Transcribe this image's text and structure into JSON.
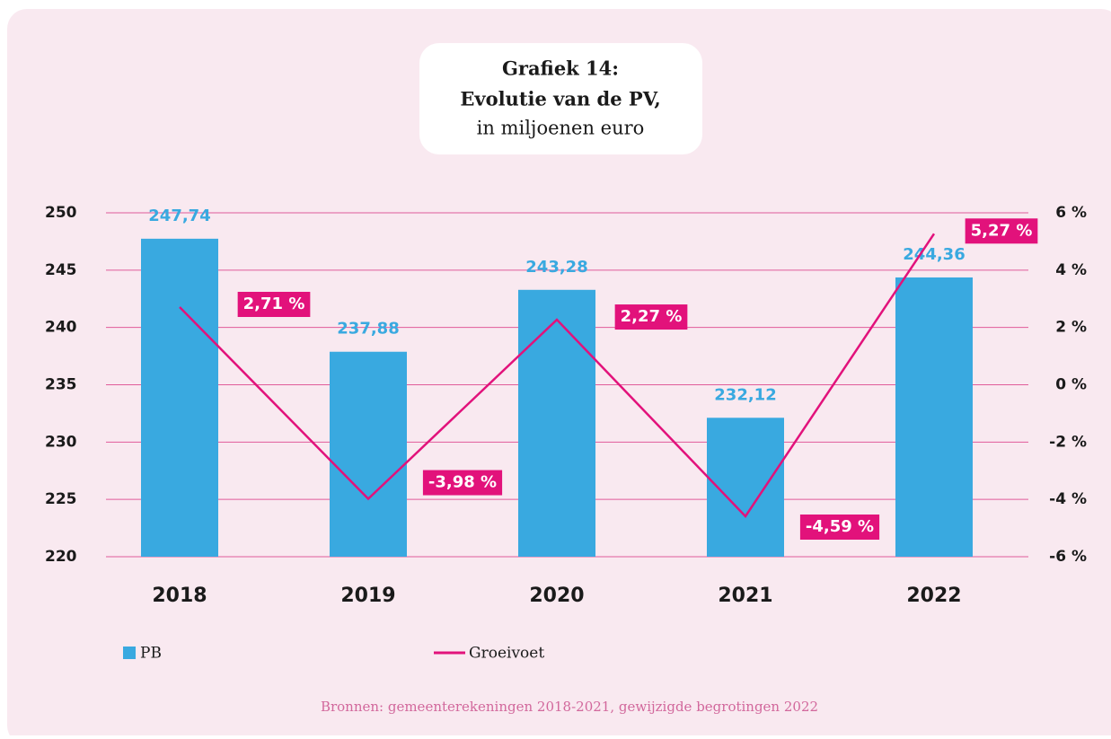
{
  "chart_data": {
    "type": "bar_line",
    "title": [
      "Grafiek 14:",
      "Evolutie van de PV,"
    ],
    "subtitle": "in miljoenen euro",
    "categories": [
      "2018",
      "2019",
      "2020",
      "2021",
      "2022"
    ],
    "series": [
      {
        "name": "PB",
        "color": "#39a9e0",
        "type": "bar",
        "values": [
          247.74,
          237.88,
          243.28,
          232.12,
          244.36
        ],
        "value_labels": [
          "247,74",
          "237,88",
          "243,28",
          "232,12",
          "244,36"
        ]
      },
      {
        "name": "Groeivoet",
        "color": "#e2127b",
        "type": "line",
        "axis": "y2",
        "values": [
          2.71,
          -3.98,
          2.27,
          -4.59,
          5.27
        ],
        "value_labels": [
          "2,71 %",
          "-3,98 %",
          "2,27 %",
          "-4,59 %",
          "5,27 %"
        ]
      }
    ],
    "ylim": [
      220,
      250
    ],
    "yticks": [
      220,
      225,
      230,
      235,
      240,
      245,
      250
    ],
    "y2lim": [
      -6,
      6
    ],
    "y2ticks": [
      {
        "value": -6,
        "label": "-6 %"
      },
      {
        "value": -4,
        "label": "-4 %"
      },
      {
        "value": -2,
        "label": "-2 %"
      },
      {
        "value": 0,
        "label": "0 %"
      },
      {
        "value": 2,
        "label": "2 %"
      },
      {
        "value": 4,
        "label": "4 %"
      },
      {
        "value": 6,
        "label": "6 %"
      }
    ],
    "grid": true,
    "source": "Bronnen: gemeenterekeningen 2018-2021, gewijzigde begrotingen 2022"
  }
}
